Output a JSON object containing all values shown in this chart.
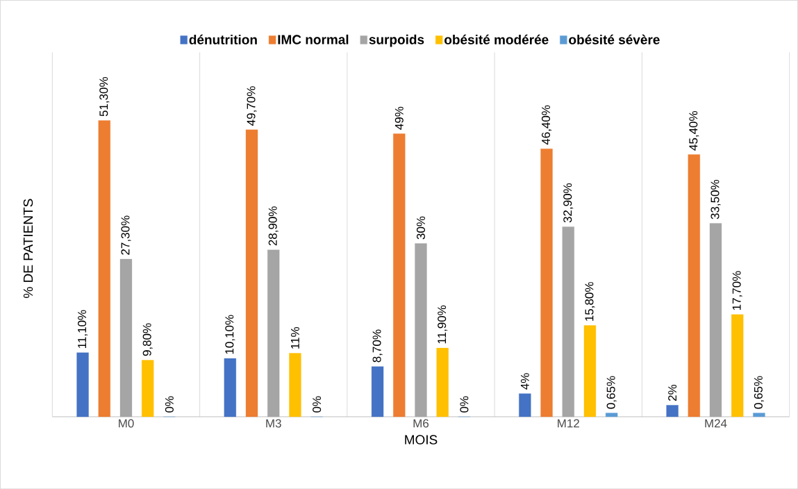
{
  "chart_data": {
    "type": "bar",
    "xlabel": "MOIS",
    "ylabel": "% DE PATIENTS",
    "categories": [
      "M0",
      "M3",
      "M6",
      "M12",
      "M24"
    ],
    "series": [
      {
        "name": "dénutrition",
        "color": "#4472c4",
        "values": [
          11.1,
          10.1,
          8.7,
          4,
          2
        ],
        "value_labels": [
          "11,10%",
          "10,10%",
          "8,70%",
          "4%",
          "2%"
        ]
      },
      {
        "name": "IMC normal",
        "color": "#ed7d31",
        "values": [
          51.3,
          49.7,
          49,
          46.4,
          45.4
        ],
        "value_labels": [
          "51,30%",
          "49,70%",
          "49%",
          "46,40%",
          "45,40%"
        ]
      },
      {
        "name": "surpoids",
        "color": "#a5a5a5",
        "values": [
          27.3,
          28.9,
          30,
          32.9,
          33.5
        ],
        "value_labels": [
          "27,30%",
          "28,90%",
          "30%",
          "32,90%",
          "33,50%"
        ]
      },
      {
        "name": "obésité modérée",
        "color": "#ffc000",
        "values": [
          9.8,
          11,
          11.9,
          15.8,
          17.7
        ],
        "value_labels": [
          "9,80%",
          "11%",
          "11,90%",
          "15,80%",
          "17,70%"
        ]
      },
      {
        "name": "obésité sévère",
        "color": "#5b9bd5",
        "values": [
          0,
          0,
          0,
          0.65,
          0.65
        ],
        "value_labels": [
          "0%",
          "0%",
          "0%",
          "0,65%",
          "0,65%"
        ]
      }
    ],
    "legend": "top",
    "grid": "x"
  }
}
